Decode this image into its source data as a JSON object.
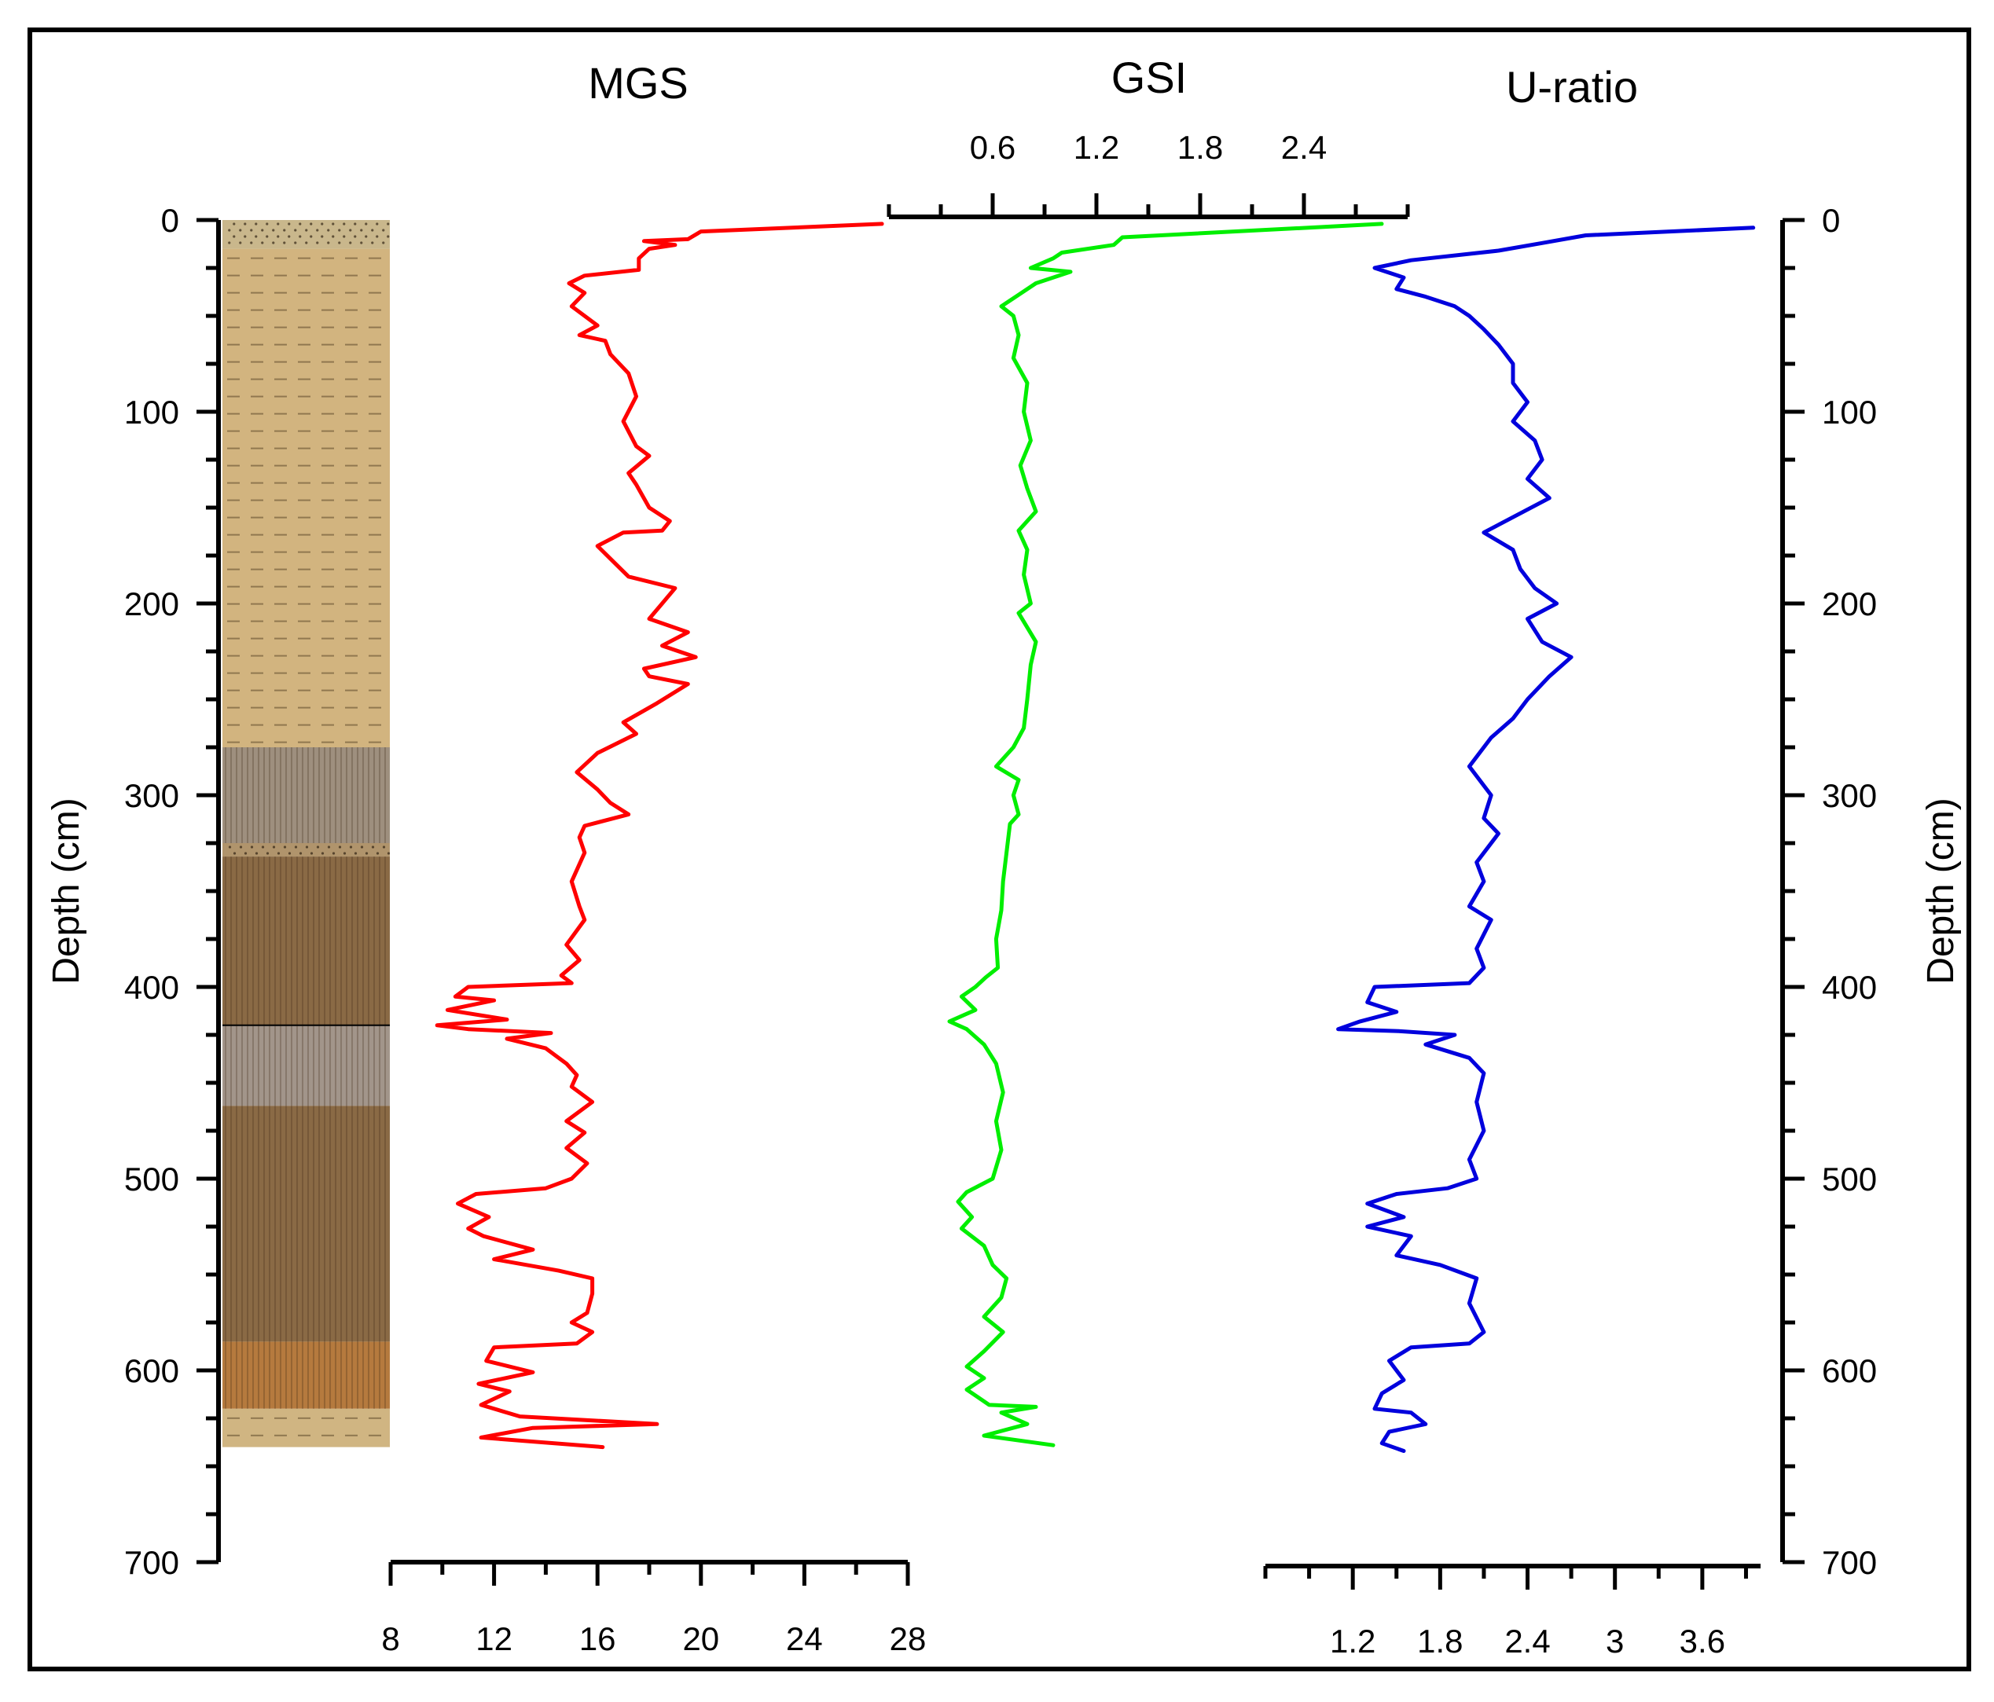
{
  "chart_data": {
    "type": "line",
    "orientation": "depth-profile",
    "depth_axis": {
      "label": "Depth (cm)",
      "range": [
        0,
        700
      ],
      "major_ticks": [
        0,
        100,
        200,
        300,
        400,
        500,
        600,
        700
      ],
      "minor_step": 25
    },
    "lithology_column": {
      "depth_range": [
        0,
        640
      ],
      "layers": [
        {
          "from": 0,
          "to": 15,
          "type": "sand",
          "color": "#c9b78c"
        },
        {
          "from": 15,
          "to": 275,
          "type": "silt",
          "color": "#d2b47f"
        },
        {
          "from": 275,
          "to": 325,
          "type": "clayey silt (grey)",
          "color": "#9e8f7e"
        },
        {
          "from": 325,
          "to": 332,
          "type": "sand",
          "color": "#b0946c"
        },
        {
          "from": 332,
          "to": 420,
          "type": "clay",
          "color": "#8a6a45"
        },
        {
          "from": 420,
          "to": 462,
          "type": "clayey silt (grey)",
          "color": "#a2958a"
        },
        {
          "from": 462,
          "to": 585,
          "type": "clay",
          "color": "#8a6a45"
        },
        {
          "from": 585,
          "to": 620,
          "type": "clay (orange)",
          "color": "#b57a3e"
        },
        {
          "from": 620,
          "to": 640,
          "type": "silt",
          "color": "#d0b582"
        }
      ]
    },
    "series": [
      {
        "name": "MGS",
        "title": "MGS",
        "color": "#ff0000",
        "axis_position": "bottom",
        "range": [
          8,
          28
        ],
        "ticks": [
          8,
          12,
          16,
          20,
          24,
          28
        ],
        "tick_labels": [
          "8",
          "12",
          "16",
          "20",
          "24",
          "28"
        ],
        "points": [
          [
            27.0,
            2
          ],
          [
            20.0,
            6
          ],
          [
            19.5,
            10
          ],
          [
            17.8,
            11
          ],
          [
            19.0,
            13
          ],
          [
            18.0,
            15
          ],
          [
            17.6,
            20
          ],
          [
            17.6,
            26
          ],
          [
            15.5,
            29
          ],
          [
            14.9,
            33
          ],
          [
            15.5,
            38
          ],
          [
            15.0,
            45
          ],
          [
            15.3,
            48
          ],
          [
            16.0,
            55
          ],
          [
            15.3,
            60
          ],
          [
            16.3,
            63
          ],
          [
            16.5,
            70
          ],
          [
            17.2,
            80
          ],
          [
            17.5,
            92
          ],
          [
            17.0,
            105
          ],
          [
            17.5,
            118
          ],
          [
            18.0,
            123
          ],
          [
            17.2,
            132
          ],
          [
            17.5,
            138
          ],
          [
            18.0,
            150
          ],
          [
            18.8,
            157
          ],
          [
            18.5,
            162
          ],
          [
            17.0,
            163
          ],
          [
            16.0,
            170
          ],
          [
            16.6,
            178
          ],
          [
            17.2,
            186
          ],
          [
            19.0,
            192
          ],
          [
            18.5,
            200
          ],
          [
            18.0,
            208
          ],
          [
            19.5,
            215
          ],
          [
            18.5,
            222
          ],
          [
            19.8,
            228
          ],
          [
            17.8,
            234
          ],
          [
            18.0,
            238
          ],
          [
            19.5,
            242
          ],
          [
            18.3,
            252
          ],
          [
            17.0,
            262
          ],
          [
            17.5,
            268
          ],
          [
            16.0,
            278
          ],
          [
            15.2,
            288
          ],
          [
            16.0,
            297
          ],
          [
            16.5,
            304
          ],
          [
            17.2,
            310
          ],
          [
            15.5,
            316
          ],
          [
            15.3,
            322
          ],
          [
            15.5,
            330
          ],
          [
            15.0,
            345
          ],
          [
            15.3,
            358
          ],
          [
            15.5,
            365
          ],
          [
            14.8,
            378
          ],
          [
            15.3,
            386
          ],
          [
            14.6,
            394
          ],
          [
            15.0,
            398
          ],
          [
            11.0,
            400
          ],
          [
            10.5,
            405
          ],
          [
            12.0,
            407
          ],
          [
            10.2,
            412
          ],
          [
            12.5,
            417
          ],
          [
            9.8,
            420
          ],
          [
            11.0,
            422
          ],
          [
            14.2,
            424
          ],
          [
            12.5,
            427
          ],
          [
            14.0,
            432
          ],
          [
            14.8,
            440
          ],
          [
            15.2,
            446
          ],
          [
            15.0,
            452
          ],
          [
            15.8,
            460
          ],
          [
            14.8,
            470
          ],
          [
            15.5,
            476
          ],
          [
            14.8,
            484
          ],
          [
            15.6,
            492
          ],
          [
            15.0,
            500
          ],
          [
            14.0,
            505
          ],
          [
            11.3,
            508
          ],
          [
            10.6,
            513
          ],
          [
            11.8,
            520
          ],
          [
            11.0,
            526
          ],
          [
            11.6,
            530
          ],
          [
            13.5,
            537
          ],
          [
            12.0,
            542
          ],
          [
            14.5,
            548
          ],
          [
            15.8,
            552
          ],
          [
            15.8,
            560
          ],
          [
            15.6,
            570
          ],
          [
            15.0,
            575
          ],
          [
            15.8,
            580
          ],
          [
            15.2,
            586
          ],
          [
            12.0,
            588
          ],
          [
            11.7,
            595
          ],
          [
            13.5,
            601
          ],
          [
            11.4,
            607
          ],
          [
            12.6,
            611
          ],
          [
            11.5,
            618
          ],
          [
            13.0,
            624
          ],
          [
            18.3,
            628
          ],
          [
            13.5,
            630
          ],
          [
            11.5,
            635
          ],
          [
            16.2,
            640
          ]
        ]
      },
      {
        "name": "GSI",
        "title": "GSI",
        "color": "#00ee00",
        "axis_position": "top",
        "range": [
          0,
          3.0
        ],
        "ticks": [
          0.6,
          1.2,
          1.8,
          2.4
        ],
        "tick_labels": [
          "0.6",
          "1.2",
          "1.8",
          "2.4"
        ],
        "points": [
          [
            2.85,
            2
          ],
          [
            1.35,
            9
          ],
          [
            1.3,
            13
          ],
          [
            1.0,
            17
          ],
          [
            0.95,
            20
          ],
          [
            0.82,
            25
          ],
          [
            1.05,
            27
          ],
          [
            0.85,
            33
          ],
          [
            0.75,
            39
          ],
          [
            0.65,
            45
          ],
          [
            0.72,
            50
          ],
          [
            0.75,
            60
          ],
          [
            0.72,
            72
          ],
          [
            0.8,
            85
          ],
          [
            0.78,
            100
          ],
          [
            0.82,
            115
          ],
          [
            0.76,
            128
          ],
          [
            0.8,
            140
          ],
          [
            0.85,
            152
          ],
          [
            0.75,
            162
          ],
          [
            0.8,
            172
          ],
          [
            0.78,
            185
          ],
          [
            0.82,
            200
          ],
          [
            0.75,
            205
          ],
          [
            0.85,
            220
          ],
          [
            0.82,
            232
          ],
          [
            0.8,
            250
          ],
          [
            0.78,
            265
          ],
          [
            0.72,
            275
          ],
          [
            0.62,
            285
          ],
          [
            0.75,
            292
          ],
          [
            0.72,
            300
          ],
          [
            0.75,
            310
          ],
          [
            0.7,
            315
          ],
          [
            0.68,
            330
          ],
          [
            0.66,
            345
          ],
          [
            0.65,
            360
          ],
          [
            0.62,
            375
          ],
          [
            0.63,
            390
          ],
          [
            0.56,
            395
          ],
          [
            0.5,
            400
          ],
          [
            0.42,
            405
          ],
          [
            0.5,
            412
          ],
          [
            0.35,
            418
          ],
          [
            0.45,
            422
          ],
          [
            0.55,
            430
          ],
          [
            0.62,
            440
          ],
          [
            0.66,
            455
          ],
          [
            0.62,
            470
          ],
          [
            0.65,
            485
          ],
          [
            0.6,
            500
          ],
          [
            0.45,
            507
          ],
          [
            0.4,
            512
          ],
          [
            0.48,
            520
          ],
          [
            0.42,
            526
          ],
          [
            0.55,
            535
          ],
          [
            0.6,
            545
          ],
          [
            0.68,
            552
          ],
          [
            0.65,
            562
          ],
          [
            0.55,
            572
          ],
          [
            0.66,
            580
          ],
          [
            0.55,
            590
          ],
          [
            0.45,
            598
          ],
          [
            0.55,
            604
          ],
          [
            0.45,
            610
          ],
          [
            0.58,
            618
          ],
          [
            0.85,
            619
          ],
          [
            0.65,
            622
          ],
          [
            0.8,
            628
          ],
          [
            0.55,
            634
          ],
          [
            0.95,
            639
          ]
        ]
      },
      {
        "name": "U-ratio",
        "title": "U-ratio",
        "color": "#0000dd",
        "axis_position": "bottom",
        "range": [
          0.6,
          4.0
        ],
        "ticks": [
          1.2,
          1.8,
          2.4,
          3.0,
          3.6
        ],
        "tick_labels": [
          "1.2",
          "1.8",
          "2.4",
          "3",
          "3.6"
        ],
        "points": [
          [
            3.95,
            4
          ],
          [
            2.8,
            8
          ],
          [
            2.5,
            12
          ],
          [
            2.2,
            16
          ],
          [
            1.6,
            21
          ],
          [
            1.35,
            25
          ],
          [
            1.55,
            30
          ],
          [
            1.5,
            36
          ],
          [
            1.7,
            40
          ],
          [
            1.9,
            45
          ],
          [
            2.0,
            50
          ],
          [
            2.1,
            57
          ],
          [
            2.2,
            65
          ],
          [
            2.3,
            75
          ],
          [
            2.3,
            85
          ],
          [
            2.4,
            95
          ],
          [
            2.3,
            105
          ],
          [
            2.45,
            115
          ],
          [
            2.5,
            125
          ],
          [
            2.4,
            135
          ],
          [
            2.55,
            145
          ],
          [
            2.1,
            163
          ],
          [
            2.3,
            172
          ],
          [
            2.35,
            182
          ],
          [
            2.45,
            192
          ],
          [
            2.6,
            200
          ],
          [
            2.4,
            208
          ],
          [
            2.5,
            220
          ],
          [
            2.7,
            228
          ],
          [
            2.55,
            238
          ],
          [
            2.4,
            250
          ],
          [
            2.3,
            260
          ],
          [
            2.15,
            270
          ],
          [
            2.0,
            285
          ],
          [
            2.15,
            300
          ],
          [
            2.1,
            312
          ],
          [
            2.2,
            320
          ],
          [
            2.05,
            335
          ],
          [
            2.1,
            345
          ],
          [
            2.0,
            358
          ],
          [
            2.15,
            365
          ],
          [
            2.05,
            380
          ],
          [
            2.1,
            390
          ],
          [
            2.0,
            398
          ],
          [
            1.35,
            400
          ],
          [
            1.3,
            408
          ],
          [
            1.5,
            413
          ],
          [
            1.25,
            418
          ],
          [
            1.1,
            422
          ],
          [
            1.5,
            423
          ],
          [
            1.9,
            425
          ],
          [
            1.7,
            430
          ],
          [
            2.0,
            437
          ],
          [
            2.1,
            445
          ],
          [
            2.05,
            460
          ],
          [
            2.1,
            475
          ],
          [
            2.0,
            490
          ],
          [
            2.05,
            500
          ],
          [
            1.85,
            505
          ],
          [
            1.5,
            508
          ],
          [
            1.3,
            513
          ],
          [
            1.55,
            520
          ],
          [
            1.3,
            525
          ],
          [
            1.6,
            530
          ],
          [
            1.5,
            540
          ],
          [
            1.8,
            545
          ],
          [
            2.05,
            552
          ],
          [
            2.0,
            565
          ],
          [
            2.1,
            580
          ],
          [
            2.0,
            586
          ],
          [
            1.6,
            588
          ],
          [
            1.45,
            595
          ],
          [
            1.55,
            605
          ],
          [
            1.4,
            612
          ],
          [
            1.35,
            620
          ],
          [
            1.6,
            622
          ],
          [
            1.7,
            628
          ],
          [
            1.45,
            632
          ],
          [
            1.4,
            638
          ],
          [
            1.55,
            642
          ]
        ]
      }
    ]
  }
}
